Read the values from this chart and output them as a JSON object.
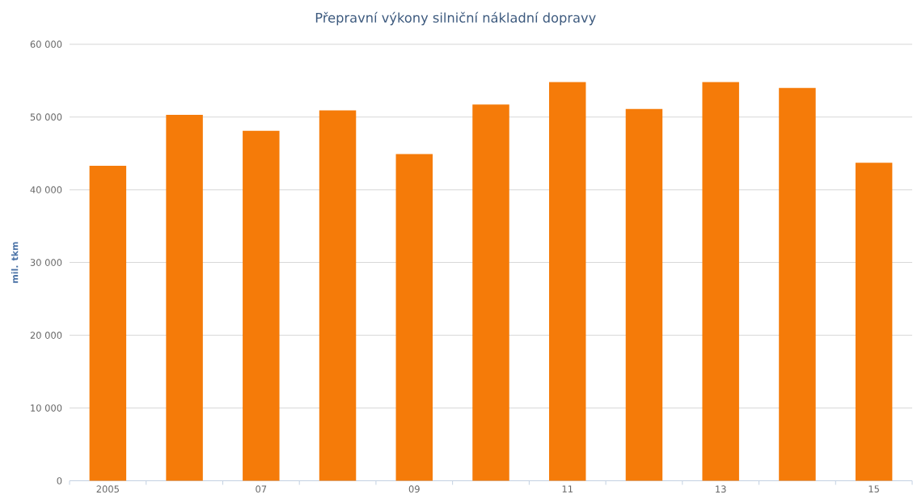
{
  "chart_data": {
    "type": "bar",
    "title": "Přepravní výkony silniční nákladní dopravy",
    "ylabel": "mil. tkm",
    "categories": [
      "2005",
      null,
      "07",
      null,
      "09",
      null,
      "11",
      null,
      "13",
      null,
      "15"
    ],
    "values": [
      43300,
      50300,
      48100,
      50900,
      44900,
      51700,
      54800,
      51100,
      54800,
      54000,
      43700
    ],
    "color": "#f57b09",
    "ylim": [
      0,
      60000
    ],
    "yticks": [
      0,
      {
        "value": 10000,
        "label": "10 000"
      },
      {
        "value": 20000,
        "label": "20 000"
      },
      {
        "value": 30000,
        "label": "30 000"
      },
      {
        "value": 40000,
        "label": "40 000"
      },
      {
        "value": 50000,
        "label": "50 000"
      },
      {
        "value": 60000,
        "label": "60 000"
      }
    ],
    "grid": "y"
  }
}
